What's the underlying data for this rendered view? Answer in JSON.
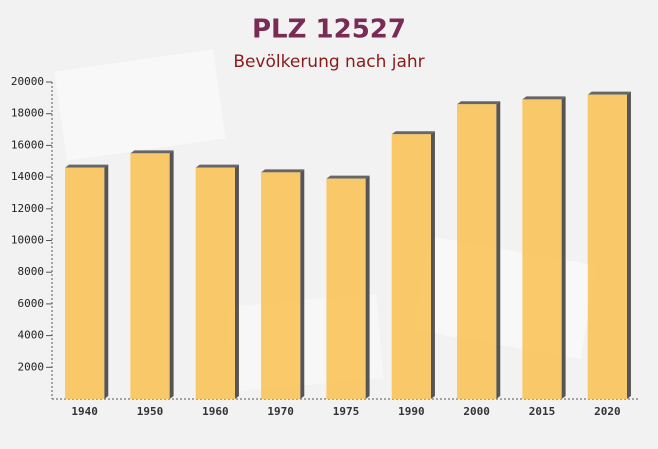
{
  "chart_data": {
    "type": "bar",
    "title": "PLZ 12527",
    "subtitle": "Bevölkerung nach jahr",
    "categories": [
      "1940",
      "1950",
      "1960",
      "1970",
      "1975",
      "1990",
      "2000",
      "2015",
      "2020"
    ],
    "values": [
      14600,
      15500,
      14600,
      14300,
      13900,
      16700,
      18600,
      18900,
      19200
    ],
    "color": "#f9c35a",
    "ylim": [
      0,
      20000
    ],
    "yticks": [
      2000,
      4000,
      6000,
      8000,
      10000,
      12000,
      14000,
      16000,
      18000,
      20000
    ],
    "grid": false
  }
}
